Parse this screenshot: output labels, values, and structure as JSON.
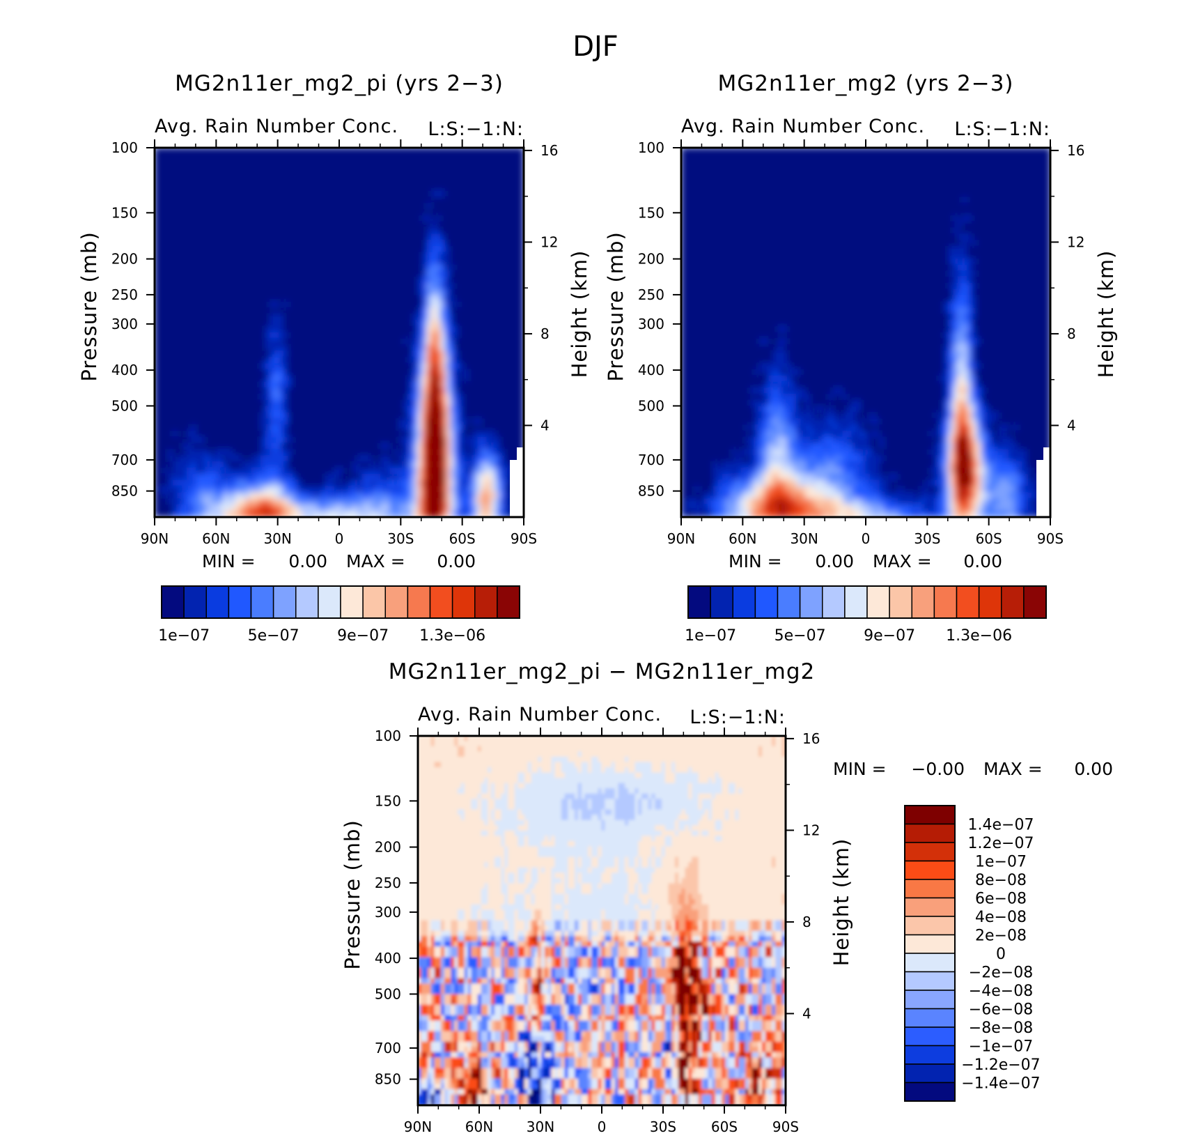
{
  "figure_title": "DJF",
  "chart_data": [
    {
      "type": "heatmap",
      "id": "left",
      "title": "MG2n11er_mg2_pi (yrs 2−3)",
      "subtitle": "Avg. Rain Number Conc.",
      "variable_tag": "L:S:−1:N:",
      "ylabel": "Pressure (mb)",
      "ylabel_right": "Height (km)",
      "x_ticks": [
        "90N",
        "60N",
        "30N",
        "0",
        "30S",
        "60S",
        "90S"
      ],
      "y_ticks": [
        "100",
        "150",
        "200",
        "250",
        "300",
        "400",
        "500",
        "700",
        "850"
      ],
      "y_tick_values": [
        100,
        150,
        200,
        250,
        300,
        400,
        500,
        700,
        850
      ],
      "y_range": [
        100,
        1000
      ],
      "right_ticks": [
        "16",
        "12",
        "8",
        "4"
      ],
      "right_tick_values": [
        16,
        12,
        8,
        4
      ],
      "min_label": "MIN =",
      "min_value": "0.00",
      "max_label": "MAX =",
      "max_value": "0.00",
      "colorbar_labels": [
        "1e−07",
        "5e−07",
        "9e−07",
        "1.3e−06"
      ],
      "colorbar_levels": [
        1e-07,
        2e-07,
        3e-07,
        4e-07,
        5e-07,
        6e-07,
        7e-07,
        8e-07,
        9e-07,
        1e-06,
        1.1e-06,
        1.2e-06,
        1.3e-06,
        1.4e-06,
        1.5e-06,
        1.6e-06
      ]
    },
    {
      "type": "heatmap",
      "id": "right",
      "title": "MG2n11er_mg2 (yrs 2−3)",
      "subtitle": "Avg. Rain Number Conc.",
      "variable_tag": "L:S:−1:N:",
      "ylabel": "Pressure (mb)",
      "ylabel_right": "Height (km)",
      "x_ticks": [
        "90N",
        "60N",
        "30N",
        "0",
        "30S",
        "60S",
        "90S"
      ],
      "y_ticks": [
        "100",
        "150",
        "200",
        "250",
        "300",
        "400",
        "500",
        "700",
        "850"
      ],
      "y_tick_values": [
        100,
        150,
        200,
        250,
        300,
        400,
        500,
        700,
        850
      ],
      "y_range": [
        100,
        1000
      ],
      "right_ticks": [
        "16",
        "12",
        "8",
        "4"
      ],
      "right_tick_values": [
        16,
        12,
        8,
        4
      ],
      "min_label": "MIN =",
      "min_value": "0.00",
      "max_label": "MAX =",
      "max_value": "0.00",
      "colorbar_labels": [
        "1e−07",
        "5e−07",
        "9e−07",
        "1.3e−06"
      ],
      "colorbar_levels": [
        1e-07,
        2e-07,
        3e-07,
        4e-07,
        5e-07,
        6e-07,
        7e-07,
        8e-07,
        9e-07,
        1e-06,
        1.1e-06,
        1.2e-06,
        1.3e-06,
        1.4e-06,
        1.5e-06,
        1.6e-06
      ]
    },
    {
      "type": "heatmap",
      "id": "diff",
      "title": "MG2n11er_mg2_pi − MG2n11er_mg2",
      "subtitle": "Avg. Rain Number Conc.",
      "variable_tag": "L:S:−1:N:",
      "ylabel": "Pressure (mb)",
      "ylabel_right": "Height (km)",
      "x_ticks": [
        "90N",
        "60N",
        "30N",
        "0",
        "30S",
        "60S",
        "90S"
      ],
      "y_ticks": [
        "100",
        "150",
        "200",
        "250",
        "300",
        "400",
        "500",
        "700",
        "850"
      ],
      "y_tick_values": [
        100,
        150,
        200,
        250,
        300,
        400,
        500,
        700,
        850
      ],
      "y_range": [
        100,
        1000
      ],
      "right_ticks": [
        "16",
        "12",
        "8",
        "4"
      ],
      "right_tick_values": [
        16,
        12,
        8,
        4
      ],
      "min_label": "MIN =",
      "min_value": "−0.00",
      "max_label": "MAX =",
      "max_value": "0.00",
      "colorbar_labels": [
        "1.4e−07",
        "1.2e−07",
        "1e−07",
        "8e−08",
        "6e−08",
        "4e−08",
        "2e−08",
        "0",
        "−2e−08",
        "−4e−08",
        "−6e−08",
        "−8e−08",
        "−1e−07",
        "−1.2e−07",
        "−1.4e−07"
      ],
      "colorbar_levels": [
        1.4e-07,
        1.2e-07,
        1e-07,
        8e-08,
        6e-08,
        4e-08,
        2e-08,
        0,
        -2e-08,
        -4e-08,
        -6e-08,
        -8e-08,
        -1e-07,
        -1.2e-07,
        -1.4e-07
      ]
    }
  ],
  "colors": {
    "seq": [
      "#030a7f",
      "#0223b0",
      "#0a3ce0",
      "#2058ff",
      "#4a7dff",
      "#7ea2ff",
      "#b4c9ff",
      "#dbe8fb",
      "#fde8d8",
      "#fbc6a8",
      "#f8a07c",
      "#f6794f",
      "#f24e1f",
      "#de3509",
      "#b71e07",
      "#8a0505"
    ],
    "div": [
      "#7e0000",
      "#b51c05",
      "#d33009",
      "#fb4c16",
      "#f97845",
      "#f9a07b",
      "#fbc6aa",
      "#fde8d8",
      "#dbe8fb",
      "#b4c9ff",
      "#89a6ff",
      "#5a84ff",
      "#2c5dff",
      "#0d3ddf",
      "#0223b0",
      "#030a7f"
    ]
  }
}
